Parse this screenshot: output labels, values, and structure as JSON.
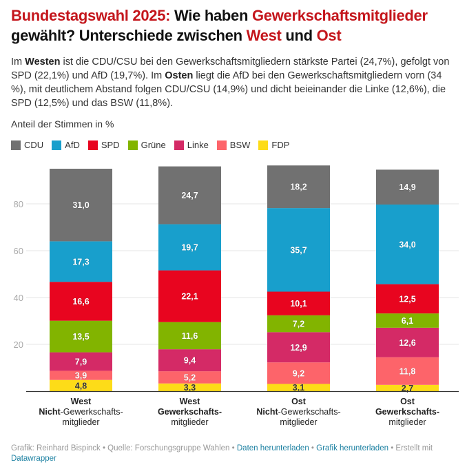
{
  "header": {
    "title_parts": [
      {
        "text": "Bundestagswahl 2025:",
        "highlight": true
      },
      {
        "text": " Wie haben ",
        "highlight": false
      },
      {
        "text": "Gewerkschaftsmitglieder",
        "highlight": true
      },
      {
        "text": " gewählt? Unterschiede zwischen ",
        "highlight": false
      },
      {
        "text": "West",
        "highlight": true
      },
      {
        "text": " und ",
        "highlight": false
      },
      {
        "text": "Ost",
        "highlight": true
      }
    ],
    "description_parts": [
      {
        "text": "Im ",
        "bold": false
      },
      {
        "text": "Westen",
        "bold": true
      },
      {
        "text": " ist die CDU/CSU bei den Gewerkschaftsmitgliedern stärkste Partei (24,7%), gefolgt von SPD (22,1%) und AfD (19,7%). Im ",
        "bold": false
      },
      {
        "text": "Osten",
        "bold": true
      },
      {
        "text": " liegt die AfD bei den Gewerkschaftsmitgliedern vorn (34 %), mit deutlichem Abstand folgen CDU/CSU (14,9%) und dicht beieinander die Linke (12,6%), die SPD (12,5%) und das BSW (11,8%).",
        "bold": false
      }
    ]
  },
  "colors": {
    "title_accent": "#c4161c",
    "link": "#1d81a2"
  },
  "chart_data": {
    "type": "bar",
    "stacked": true,
    "title": "Bundestagswahl 2025: Wie haben Gewerkschaftsmitglieder gewählt? Unterschiede zwischen West und Ost",
    "ylabel": "Anteil der Stimmen in %",
    "xlabel": "",
    "ylim": [
      0,
      100
    ],
    "yticks": [
      20,
      40,
      60,
      80
    ],
    "grid": true,
    "legend_position": "top-left",
    "categories": [
      {
        "line1": "West",
        "line2_bold": "Nicht",
        "line2_rest": "-Gewerkschafts-",
        "line3": "mitglieder"
      },
      {
        "line1": "West",
        "line2_bold": "Gewerkschafts-",
        "line2_rest": "",
        "line3": "mitglieder"
      },
      {
        "line1": "Ost",
        "line2_bold": "Nicht",
        "line2_rest": "-Gewerkschafts-",
        "line3": "mitglieder"
      },
      {
        "line1": "Ost",
        "line2_bold": "Gewerkschafts-",
        "line2_rest": "",
        "line3": "mitglieder"
      }
    ],
    "category_names": [
      "West Nicht-Gewerkschaftsmitglieder",
      "West Gewerkschaftsmitglieder",
      "Ost Nicht-Gewerkschaftsmitglieder",
      "Ost Gewerkschaftsmitglieder"
    ],
    "series": [
      {
        "name": "FDP",
        "color": "#fddc18",
        "label_color": "#333333",
        "values": [
          4.8,
          3.3,
          3.1,
          2.7
        ],
        "labels": [
          "4,8",
          "3,3",
          "3,1",
          "2,7"
        ]
      },
      {
        "name": "BSW",
        "color": "#fd646a",
        "label_color": "#ffffff",
        "values": [
          3.9,
          5.2,
          9.2,
          11.8
        ],
        "labels": [
          "3,9",
          "5,2",
          "9,2",
          "11,8"
        ]
      },
      {
        "name": "Linke",
        "color": "#d42a66",
        "label_color": "#ffffff",
        "values": [
          7.9,
          9.4,
          12.9,
          12.6
        ],
        "labels": [
          "7,9",
          "9,4",
          "12,9",
          "12,6"
        ]
      },
      {
        "name": "Grüne",
        "color": "#82b400",
        "label_color": "#ffffff",
        "values": [
          13.5,
          11.6,
          7.2,
          6.1
        ],
        "labels": [
          "13,5",
          "11,6",
          "7,2",
          "6,1"
        ]
      },
      {
        "name": "SPD",
        "color": "#e8051f",
        "label_color": "#ffffff",
        "values": [
          16.6,
          22.1,
          10.1,
          12.5
        ],
        "labels": [
          "16,6",
          "22,1",
          "10,1",
          "12,5"
        ]
      },
      {
        "name": "AfD",
        "color": "#189fcc",
        "label_color": "#ffffff",
        "values": [
          17.3,
          19.7,
          35.7,
          34.0
        ],
        "labels": [
          "17,3",
          "19,7",
          "35,7",
          "34,0"
        ]
      },
      {
        "name": "CDU",
        "color": "#717171",
        "label_color": "#ffffff",
        "values": [
          31.0,
          24.7,
          18.2,
          14.9
        ],
        "labels": [
          "31,0",
          "24,7",
          "18,2",
          "14,9"
        ]
      }
    ],
    "legend_order": [
      "CDU",
      "AfD",
      "SPD",
      "Grüne",
      "Linke",
      "BSW",
      "FDP"
    ]
  },
  "footer": {
    "credit": "Grafik: Reinhard Bispinck • Quelle: Forschungsgruppe Wahlen • ",
    "link_data": "Daten herunterladen",
    "sep1": " • ",
    "link_graphic": "Grafik herunterladen",
    "sep2": " • Erstellt mit ",
    "link_datawrapper": "Datawrapper"
  }
}
